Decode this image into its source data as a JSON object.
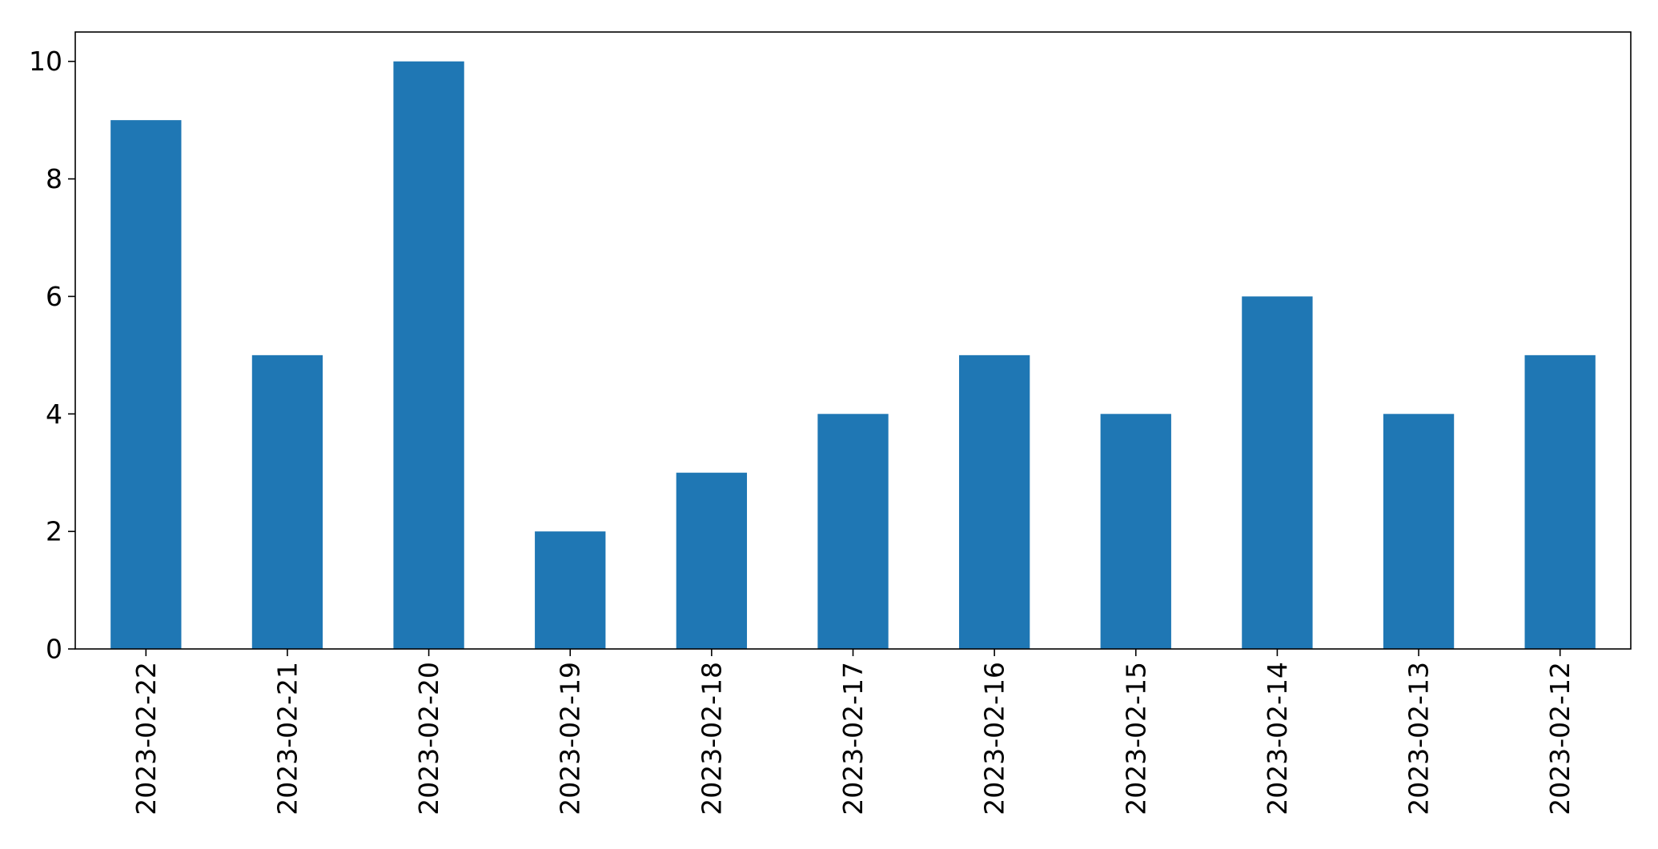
{
  "chart_data": {
    "type": "bar",
    "title": "",
    "xlabel": "",
    "ylabel": "",
    "categories": [
      "2023-02-22",
      "2023-02-21",
      "2023-02-20",
      "2023-02-19",
      "2023-02-18",
      "2023-02-17",
      "2023-02-16",
      "2023-02-15",
      "2023-02-14",
      "2023-02-13",
      "2023-02-12"
    ],
    "values": [
      9,
      5,
      10,
      2,
      3,
      4,
      5,
      4,
      6,
      4,
      5
    ],
    "ylim": [
      0,
      10.5
    ],
    "yticks": [
      0,
      2,
      4,
      6,
      8,
      10
    ],
    "ytick_labels": [
      "0",
      "2",
      "4",
      "6",
      "8",
      "10"
    ],
    "bar_color": "#1f77b4",
    "grid": false,
    "legend": false,
    "xtick_rotation": "vertical"
  }
}
